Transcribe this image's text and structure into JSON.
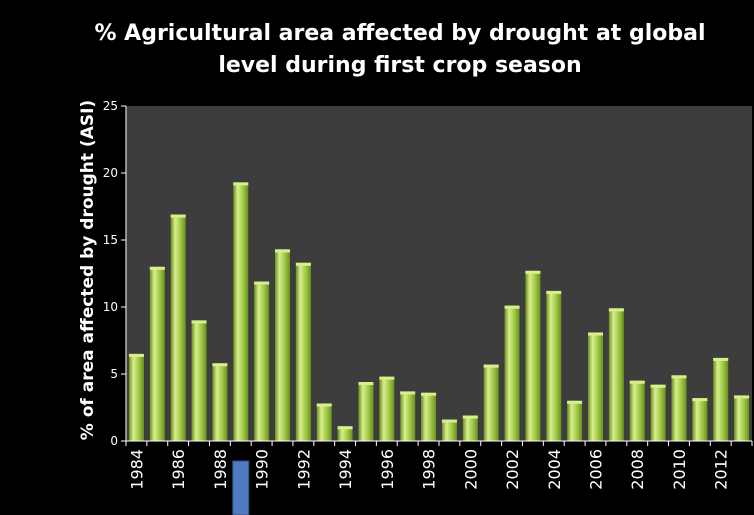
{
  "colors": {
    "background": "#000000",
    "plot_area": "#3d3d3d",
    "bar": "#98c33f",
    "bar_highlight": "#d9ef8e",
    "bar_shadow": "#6a8f1e",
    "marker": "#4f7bbf",
    "text": "#ffffff"
  },
  "chart_data": {
    "type": "bar",
    "title": "% Agricultural area affected by drought at global level during first crop season",
    "title_lines": [
      "% Agricultural area affected by drought at global",
      "level during first crop season"
    ],
    "xlabel": "",
    "ylabel": "% of area affected by drought (ASI)",
    "ylim": [
      0,
      25
    ],
    "yticks": [
      0,
      5,
      10,
      15,
      20,
      25
    ],
    "grid": false,
    "legend": "none",
    "categories": [
      1984,
      1985,
      1986,
      1987,
      1988,
      1989,
      1990,
      1991,
      1992,
      1993,
      1994,
      1995,
      1996,
      1997,
      1998,
      1999,
      2000,
      2001,
      2002,
      2003,
      2004,
      2005,
      2006,
      2007,
      2008,
      2009,
      2010,
      2011,
      2012,
      2013
    ],
    "x_tick_labels": [
      "1984",
      "1986",
      "1988",
      "1990",
      "1992",
      "1994",
      "1996",
      "1998",
      "2000",
      "2002",
      "2004",
      "2006",
      "2008",
      "2010",
      "2012"
    ],
    "values": [
      6.5,
      13.0,
      16.9,
      9.0,
      5.8,
      19.3,
      11.9,
      14.3,
      13.3,
      2.8,
      1.1,
      4.4,
      4.8,
      3.7,
      3.6,
      1.6,
      1.9,
      5.7,
      10.1,
      12.7,
      11.2,
      3.0,
      8.1,
      9.9,
      4.5,
      4.2,
      4.9,
      3.2,
      6.2,
      3.4
    ],
    "highlight_category": 1989
  }
}
